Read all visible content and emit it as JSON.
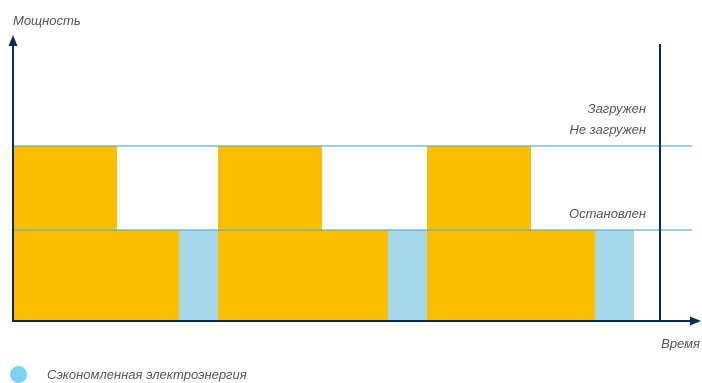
{
  "diagram": {
    "y_axis_label": "Мощность",
    "x_axis_label": "Время",
    "level_labels": {
      "loaded": "Загружен",
      "unloaded": "Не загружен",
      "stopped": "Остановлен"
    }
  },
  "legend": {
    "saved_energy_label": "Сэкономленная электроэнергия"
  },
  "colors": {
    "bar": "#FBBF00",
    "saved": "#A6D8EC",
    "level_line": "#5AB4C8",
    "axis": "#0A2B5C",
    "legend_dot": "#7DD3F3"
  }
}
